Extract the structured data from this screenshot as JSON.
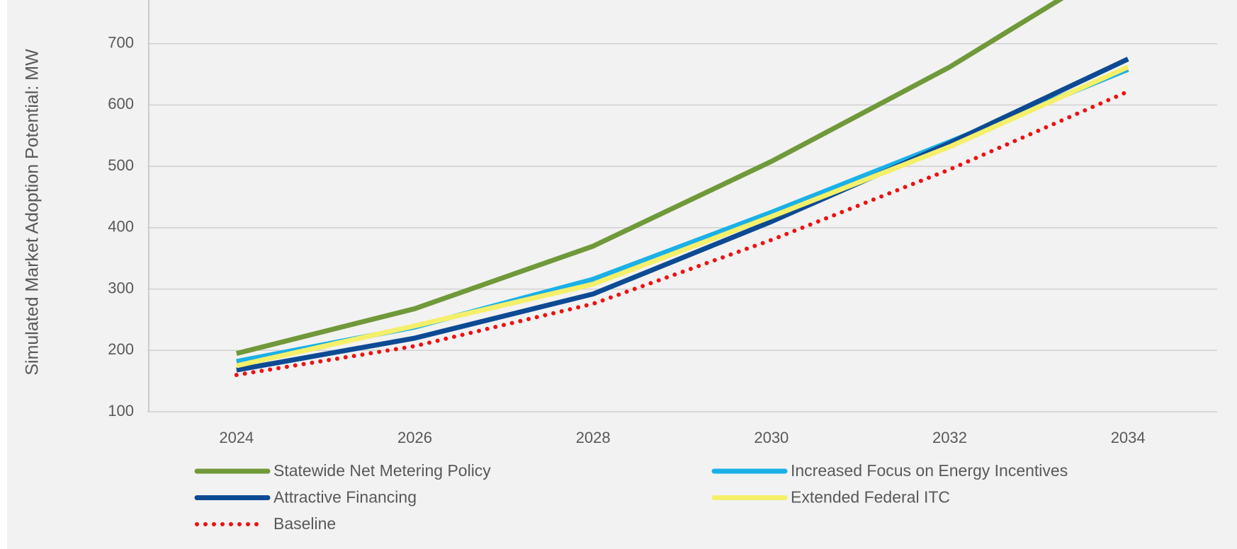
{
  "chart_data": {
    "type": "line",
    "y_axis_label": "Simulated Market Adoption Potential: MW",
    "x": [
      2024,
      2026,
      2028,
      2030,
      2032,
      2034
    ],
    "xlim": [
      2023,
      2035
    ],
    "xticks": [
      2024,
      2026,
      2028,
      2030,
      2032,
      2034
    ],
    "ylim": [
      100,
      770
    ],
    "yticks": [
      100,
      200,
      300,
      400,
      500,
      600,
      700
    ],
    "grid": true,
    "series": [
      {
        "name": "Statewide Net Metering Policy",
        "color": "#70993a",
        "values": [
          195,
          268,
          370,
          508,
          662,
          840
        ]
      },
      {
        "name": "Increased Focus on Energy Incentives",
        "color": "#1ab0e8",
        "values": [
          182,
          238,
          316,
          425,
          540,
          658
        ]
      },
      {
        "name": "Attractive Financing",
        "color": "#0c4a94",
        "values": [
          168,
          220,
          292,
          410,
          538,
          675
        ]
      },
      {
        "name": "Extended Federal ITC",
        "color": "#f5ef6a",
        "values": [
          175,
          240,
          308,
          418,
          532,
          662
        ]
      },
      {
        "name": "Baseline",
        "color": "#ee1111",
        "values": [
          160,
          207,
          276,
          380,
          495,
          622
        ],
        "dotted": true
      }
    ]
  }
}
